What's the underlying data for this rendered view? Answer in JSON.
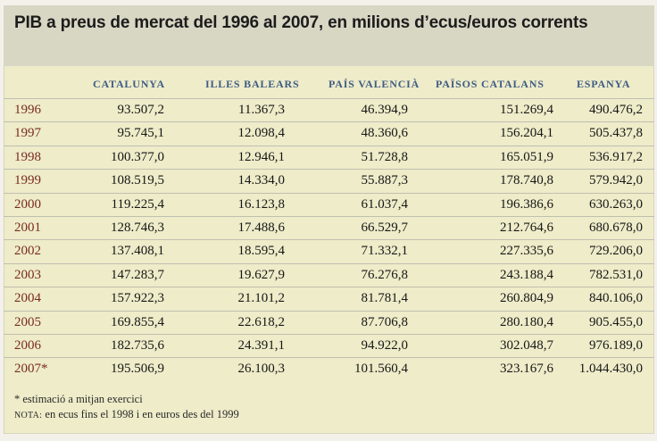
{
  "title": "PIB a preus de mercat del 1996 al 2007, en milions d’ecus/euros corrents",
  "columns": [
    "CATALUNYA",
    "ILLES BALEARS",
    "PAÍS VALENCIÀ",
    "PAÏSOS CATALANS",
    "ESPANYA"
  ],
  "rows": [
    {
      "year": "1996",
      "values": [
        "93.507,2",
        "11.367,3",
        "46.394,9",
        "151.269,4",
        "490.476,2"
      ]
    },
    {
      "year": "1997",
      "values": [
        "95.745,1",
        "12.098,4",
        "48.360,6",
        "156.204,1",
        "505.437,8"
      ]
    },
    {
      "year": "1998",
      "values": [
        "100.377,0",
        "12.946,1",
        "51.728,8",
        "165.051,9",
        "536.917,2"
      ]
    },
    {
      "year": "1999",
      "values": [
        "108.519,5",
        "14.334,0",
        "55.887,3",
        "178.740,8",
        "579.942,0"
      ]
    },
    {
      "year": "2000",
      "values": [
        "119.225,4",
        "16.123,8",
        "61.037,4",
        "196.386,6",
        "630.263,0"
      ]
    },
    {
      "year": "2001",
      "values": [
        "128.746,3",
        "17.488,6",
        "66.529,7",
        "212.764,6",
        "680.678,0"
      ]
    },
    {
      "year": "2002",
      "values": [
        "137.408,1",
        "18.595,4",
        "71.332,1",
        "227.335,6",
        "729.206,0"
      ]
    },
    {
      "year": "2003",
      "values": [
        "147.283,7",
        "19.627,9",
        "76.276,8",
        "243.188,4",
        "782.531,0"
      ]
    },
    {
      "year": "2004",
      "values": [
        "157.922,3",
        "21.101,2",
        "81.781,4",
        "260.804,9",
        "840.106,0"
      ]
    },
    {
      "year": "2005",
      "values": [
        "169.855,4",
        "22.618,2",
        "87.706,8",
        "280.180,4",
        "905.455,0"
      ]
    },
    {
      "year": "2006",
      "values": [
        "182.735,6",
        "24.391,1",
        "94.922,0",
        "302.048,7",
        "976.189,0"
      ]
    },
    {
      "year": "2007*",
      "values": [
        "195.506,9",
        "26.100,3",
        "101.560,4",
        "323.167,6",
        "1.044.430,0"
      ]
    }
  ],
  "footnotes": {
    "asterisk": "* estimació a mitjan exercici",
    "nota_label": "NOTA:",
    "nota_text": " en ecus fins el 1998 i en euros des del 1999"
  },
  "colors": {
    "header_text": "#3f5c84",
    "year_text": "#7a2b23",
    "title_band": "#d8d7c4",
    "table_bg": "#eeecc9"
  }
}
